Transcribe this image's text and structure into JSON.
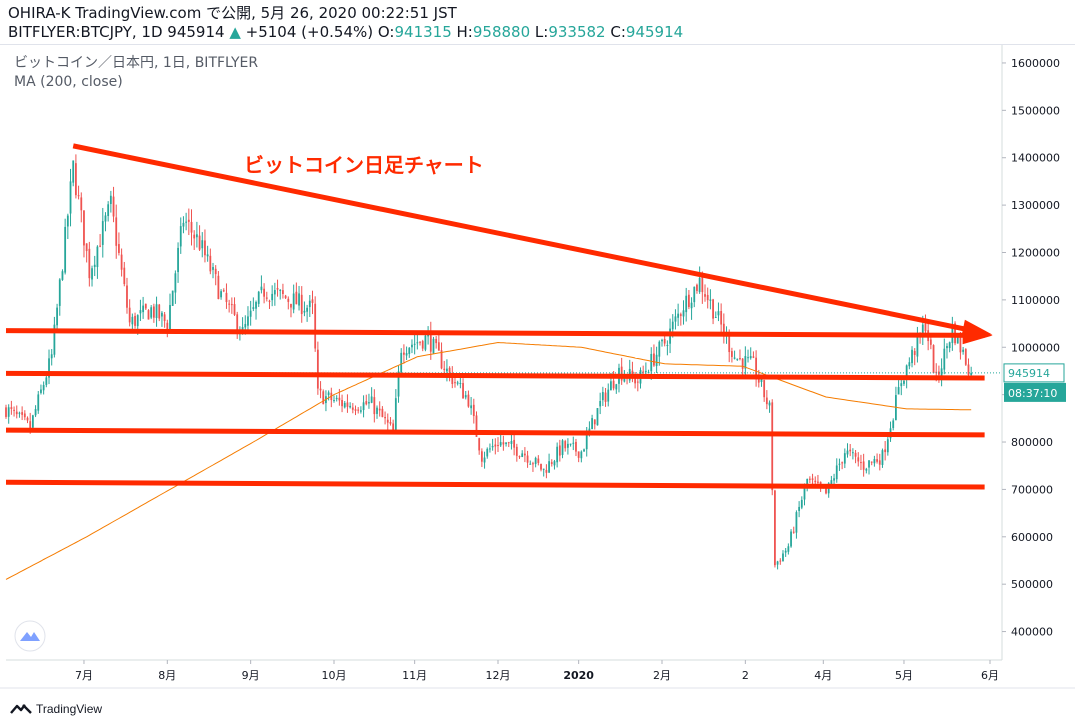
{
  "header": {
    "line1": "OHIRA-K TradingView.com で公開, 5月 26, 2020 00:22:51 JST",
    "symbol": "BITFLYER:BTCJPY, 1D 945914",
    "change_arrow": "▲",
    "change": "+5104 (+0.54%)",
    "o_label": "O:",
    "o_value": "941315",
    "h_label": "H:",
    "h_value": "958880",
    "l_label": "L:",
    "l_value": "933582",
    "c_label": "C:",
    "c_value": "945914"
  },
  "legend": {
    "title": "ビットコイン／日本円, 1日, BITFLYER",
    "indicator": "MA (200, close)"
  },
  "annotation": {
    "text": "ビットコイン日足チャート",
    "color": "#ff2a00"
  },
  "price_badges": {
    "last_price": "945914",
    "countdown": "08:37:10",
    "badge_color": "#26a69a"
  },
  "footer": {
    "brand": "TradingView"
  },
  "colors": {
    "up": "#26a69a",
    "down": "#ef5350",
    "ma": "#f57c00",
    "annotation": "#ff2a00"
  },
  "chart_data": {
    "type": "candlestick",
    "symbol": "BITFLYER:BTCJPY",
    "ylim": [
      340000,
      1640000
    ],
    "y_ticks": [
      400000,
      500000,
      600000,
      700000,
      800000,
      900000,
      1000000,
      1100000,
      1200000,
      1300000,
      1400000,
      1500000,
      1600000
    ],
    "x_ticks": [
      "7月",
      "8月",
      "9月",
      "10月",
      "11月",
      "12月",
      "2020",
      "2月",
      "2",
      "4月",
      "5月",
      "6月"
    ],
    "close_anchors": [
      [
        "2019-06-01",
        870000
      ],
      [
        "2019-06-10",
        830000
      ],
      [
        "2019-06-18",
        980000
      ],
      [
        "2019-06-26",
        1380000
      ],
      [
        "2019-07-02",
        1160000
      ],
      [
        "2019-07-10",
        1300000
      ],
      [
        "2019-07-17",
        1050000
      ],
      [
        "2019-07-25",
        1080000
      ],
      [
        "2019-07-31",
        1050000
      ],
      [
        "2019-08-06",
        1270000
      ],
      [
        "2019-08-12",
        1220000
      ],
      [
        "2019-08-20",
        1110000
      ],
      [
        "2019-08-28",
        1030000
      ],
      [
        "2019-09-05",
        1120000
      ],
      [
        "2019-09-15",
        1100000
      ],
      [
        "2019-09-23",
        1080000
      ],
      [
        "2019-09-25",
        900000
      ],
      [
        "2019-10-05",
        880000
      ],
      [
        "2019-10-15",
        880000
      ],
      [
        "2019-10-23",
        820000
      ],
      [
        "2019-10-26",
        1000000
      ],
      [
        "2019-11-05",
        1020000
      ],
      [
        "2019-11-12",
        950000
      ],
      [
        "2019-11-20",
        890000
      ],
      [
        "2019-11-25",
        770000
      ],
      [
        "2019-12-01",
        800000
      ],
      [
        "2019-12-10",
        780000
      ],
      [
        "2019-12-18",
        740000
      ],
      [
        "2019-12-25",
        790000
      ],
      [
        "2020-01-01",
        780000
      ],
      [
        "2020-01-08",
        880000
      ],
      [
        "2020-01-15",
        950000
      ],
      [
        "2020-01-22",
        930000
      ],
      [
        "2020-02-01",
        1010000
      ],
      [
        "2020-02-08",
        1090000
      ],
      [
        "2020-02-14",
        1140000
      ],
      [
        "2020-02-20",
        1070000
      ],
      [
        "2020-02-27",
        980000
      ],
      [
        "2020-03-05",
        960000
      ],
      [
        "2020-03-11",
        870000
      ],
      [
        "2020-03-13",
        540000
      ],
      [
        "2020-03-18",
        580000
      ],
      [
        "2020-03-25",
        720000
      ],
      [
        "2020-04-01",
        690000
      ],
      [
        "2020-04-08",
        780000
      ],
      [
        "2020-04-15",
        750000
      ],
      [
        "2020-04-22",
        770000
      ],
      [
        "2020-04-29",
        930000
      ],
      [
        "2020-05-08",
        1050000
      ],
      [
        "2020-05-12",
        930000
      ],
      [
        "2020-05-18",
        1040000
      ],
      [
        "2020-05-25",
        945914
      ]
    ],
    "ma_200_anchors": [
      [
        "2019-06-01",
        510000
      ],
      [
        "2019-07-01",
        600000
      ],
      [
        "2019-08-01",
        700000
      ],
      [
        "2019-09-01",
        800000
      ],
      [
        "2019-10-01",
        900000
      ],
      [
        "2019-11-01",
        980000
      ],
      [
        "2019-12-01",
        1010000
      ],
      [
        "2020-01-01",
        1000000
      ],
      [
        "2020-02-01",
        965000
      ],
      [
        "2020-03-01",
        960000
      ],
      [
        "2020-04-01",
        895000
      ],
      [
        "2020-05-01",
        870000
      ],
      [
        "2020-05-25",
        868000
      ]
    ],
    "trendlines": [
      {
        "name": "downtrend-line",
        "from": [
          "2019-06-26",
          1425000
        ],
        "to": [
          "2020-05-30",
          1030000
        ],
        "arrow": true
      },
      {
        "name": "horizontal-line-1030000",
        "from": [
          "2019-06-01",
          1035000
        ],
        "to": [
          "2020-05-30",
          1025000
        ],
        "arrow": true
      },
      {
        "name": "horizontal-line-940000",
        "from": [
          "2019-06-01",
          945000
        ],
        "to": [
          "2020-05-30",
          935000
        ],
        "arrow": false
      },
      {
        "name": "horizontal-line-820000",
        "from": [
          "2019-06-01",
          825000
        ],
        "to": [
          "2020-05-30",
          815000
        ],
        "arrow": false
      },
      {
        "name": "horizontal-line-710000",
        "from": [
          "2019-06-01",
          715000
        ],
        "to": [
          "2020-05-30",
          705000
        ],
        "arrow": false
      }
    ]
  }
}
